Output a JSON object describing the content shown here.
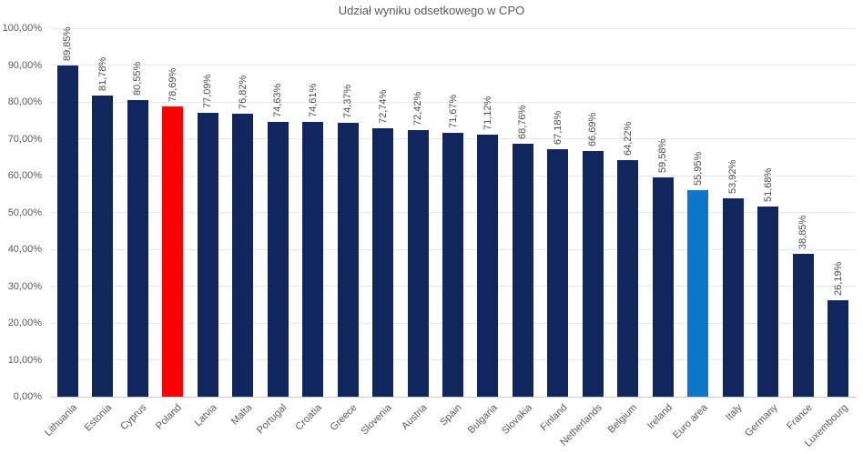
{
  "chart_data": {
    "type": "bar",
    "title": "Udział wyniku odsetkowego w CPO",
    "categories": [
      "Lithuania",
      "Estonia",
      "Cyprus",
      "Poland",
      "Latvia",
      "Malta",
      "Portugal",
      "Croatia",
      "Greece",
      "Slovenia",
      "Austria",
      "Spain",
      "Bulgaria",
      "Slovakia",
      "Finland",
      "Netherlands",
      "Belgium",
      "Ireland",
      "Euro area",
      "Italy",
      "Germany",
      "France",
      "Luxembourg"
    ],
    "values": [
      89.85,
      81.78,
      80.55,
      78.69,
      77.09,
      76.82,
      74.63,
      74.61,
      74.37,
      72.74,
      72.42,
      71.67,
      71.12,
      68.76,
      67.18,
      66.69,
      64.22,
      59.58,
      55.95,
      53.92,
      51.68,
      38.85,
      26.19
    ],
    "value_labels": [
      "89,85%",
      "81,78%",
      "80,55%",
      "78,69%",
      "77,09%",
      "76,82%",
      "74,63%",
      "74,61%",
      "74,37%",
      "72,74%",
      "72,42%",
      "71,67%",
      "71,12%",
      "68,76%",
      "67,18%",
      "66,69%",
      "64,22%",
      "59,58%",
      "55,95%",
      "53,92%",
      "51,68%",
      "38,85%",
      "26,19%"
    ],
    "ylim": [
      0,
      100
    ],
    "ytick_values": [
      0,
      10,
      20,
      30,
      40,
      50,
      60,
      70,
      80,
      90,
      100
    ],
    "ytick_labels": [
      "0,00%",
      "10,00%",
      "20,00%",
      "30,00%",
      "40,00%",
      "50,00%",
      "60,00%",
      "70,00%",
      "80,00%",
      "90,00%",
      "100,00%"
    ],
    "grid": true,
    "legend": "none",
    "bar_color_default": "#12265E",
    "bar_color_highlights": {
      "Poland": "#FF0000",
      "Euro area": "#0D77C9"
    }
  },
  "colors": {
    "background": "#FFFFFF",
    "grid": "#E8E8E8",
    "axis_line": "#C9C9C9",
    "axis_text": "#595959",
    "value_label_text": "#4D4D4D",
    "title_text": "#595959"
  }
}
